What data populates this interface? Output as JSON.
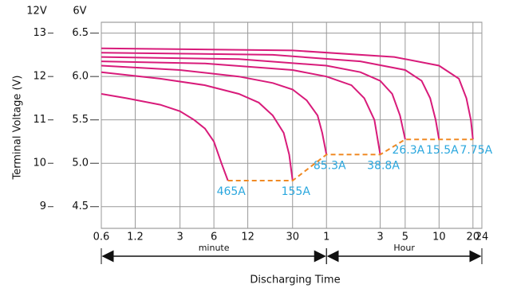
{
  "chart_data": {
    "type": "line",
    "x_label": "Discharging Time",
    "y_label": "Terminal Voltage (V)",
    "y_axis_header": "12V",
    "y2_axis_header": "6V",
    "log_x": true,
    "grid": true,
    "xlim": [
      0.6,
      1440
    ],
    "xticks": [
      0.6,
      1.2,
      3,
      6,
      12,
      30,
      {
        "value": 60,
        "label": "1"
      },
      {
        "value": 180,
        "label": "3"
      },
      {
        "value": 300,
        "label": "5"
      },
      {
        "value": 600,
        "label": "10"
      },
      {
        "value": 1200,
        "label": "20"
      },
      {
        "value": 1440,
        "label": "24"
      }
    ],
    "ylim": [
      8.5,
      13.25
    ],
    "yticks": [
      9,
      10,
      11,
      12,
      13
    ],
    "y2lim": [
      4.25,
      6.625
    ],
    "y2ticks": [
      4.5,
      {
        "value": 5,
        "label": "5.0"
      },
      5.5,
      {
        "value": 6,
        "label": "6.0"
      },
      6.5
    ],
    "x_ranges": [
      {
        "label": "minute",
        "from": 0.6,
        "to": 60
      },
      {
        "label": "Hour",
        "from": 60,
        "to": 1440
      }
    ],
    "series": [
      {
        "name": "465A",
        "color": "#d81b7a",
        "x": [
          0.6,
          1,
          2,
          3,
          4,
          5,
          6,
          7,
          8
        ],
        "y": [
          11.6,
          11.5,
          11.35,
          11.2,
          11.0,
          10.8,
          10.5,
          10.0,
          9.6
        ]
      },
      {
        "name": "155A",
        "color": "#d81b7a",
        "x": [
          0.6,
          2,
          5,
          10,
          15,
          20,
          25,
          28,
          30
        ],
        "y": [
          12.1,
          11.95,
          11.8,
          11.6,
          11.4,
          11.1,
          10.7,
          10.2,
          9.6
        ]
      },
      {
        "name": "85.3A",
        "color": "#d81b7a",
        "x": [
          0.6,
          3,
          10,
          20,
          30,
          40,
          50,
          55,
          60
        ],
        "y": [
          12.25,
          12.15,
          12.0,
          11.85,
          11.7,
          11.45,
          11.1,
          10.7,
          10.2
        ]
      },
      {
        "name": "38.8A",
        "color": "#d81b7a",
        "x": [
          0.6,
          5,
          30,
          60,
          100,
          130,
          160,
          180
        ],
        "y": [
          12.35,
          12.3,
          12.15,
          12.0,
          11.8,
          11.5,
          11.0,
          10.2
        ]
      },
      {
        "name": "26.3A",
        "color": "#d81b7a",
        "x": [
          0.6,
          10,
          60,
          120,
          180,
          230,
          270,
          300
        ],
        "y": [
          12.45,
          12.4,
          12.25,
          12.1,
          11.9,
          11.6,
          11.1,
          10.55
        ]
      },
      {
        "name": "15.5A",
        "color": "#d81b7a",
        "x": [
          0.6,
          20,
          120,
          300,
          420,
          500,
          560,
          600
        ],
        "y": [
          12.55,
          12.5,
          12.35,
          12.15,
          11.9,
          11.5,
          11.0,
          10.55
        ]
      },
      {
        "name": "7.75A",
        "color": "#d81b7a",
        "x": [
          0.6,
          30,
          240,
          600,
          900,
          1050,
          1150,
          1200
        ],
        "y": [
          12.65,
          12.6,
          12.45,
          12.25,
          11.95,
          11.5,
          11.0,
          10.55
        ]
      }
    ],
    "cutoff": {
      "color": "#f08a24",
      "x": [
        8,
        30,
        60,
        180,
        300,
        1200
      ],
      "y": [
        9.6,
        9.6,
        10.2,
        10.2,
        10.55,
        10.55
      ]
    }
  }
}
